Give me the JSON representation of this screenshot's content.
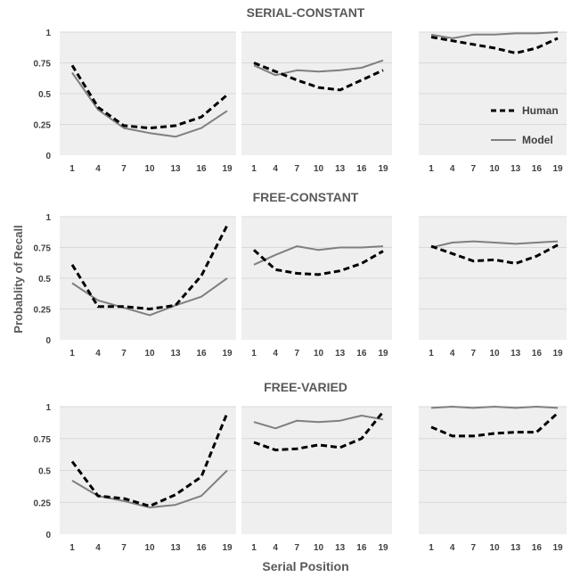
{
  "figure": {
    "ylabel": "Probablity of Recall",
    "xlabel": "Serial Position",
    "colors": {
      "panel_bg": "#efefef",
      "grid": "#d9d9d9",
      "human": "#000000",
      "model": "#7f7f7f",
      "text": "#404040"
    }
  },
  "legend": {
    "human": "Human",
    "model": "Model"
  },
  "chart_data": [
    {
      "type": "line",
      "row": 0,
      "col": 0,
      "title": "SERIAL-CONSTANT",
      "x": [
        1,
        4,
        7,
        10,
        13,
        16,
        19
      ],
      "x_tick_labels": [
        "1",
        "4",
        "7",
        "10",
        "13",
        "16",
        "19"
      ],
      "y_tick_labels": [
        "0",
        "0.25",
        "0.5",
        "0.75",
        "1"
      ],
      "ylim": [
        0,
        1
      ],
      "grid": true,
      "series": [
        {
          "name": "Human",
          "style": "dashed",
          "values": [
            0.73,
            0.39,
            0.24,
            0.22,
            0.24,
            0.31,
            0.49
          ]
        },
        {
          "name": "Model",
          "style": "solid",
          "values": [
            0.67,
            0.37,
            0.22,
            0.18,
            0.15,
            0.22,
            0.36
          ]
        }
      ]
    },
    {
      "type": "line",
      "row": 0,
      "col": 1,
      "x": [
        1,
        4,
        7,
        10,
        13,
        16,
        19
      ],
      "x_tick_labels": [
        "1",
        "4",
        "7",
        "10",
        "13",
        "16",
        "19"
      ],
      "ylim": [
        0,
        1
      ],
      "grid": true,
      "series": [
        {
          "name": "Human",
          "style": "dashed",
          "values": [
            0.75,
            0.68,
            0.61,
            0.55,
            0.53,
            0.61,
            0.69
          ]
        },
        {
          "name": "Model",
          "style": "solid",
          "values": [
            0.73,
            0.65,
            0.69,
            0.68,
            0.69,
            0.71,
            0.77
          ]
        }
      ]
    },
    {
      "type": "line",
      "row": 0,
      "col": 2,
      "x": [
        1,
        4,
        7,
        10,
        13,
        16,
        19
      ],
      "x_tick_labels": [
        "1",
        "4",
        "7",
        "10",
        "13",
        "16",
        "19"
      ],
      "ylim": [
        0,
        1
      ],
      "grid": true,
      "legend": "inside-right",
      "series": [
        {
          "name": "Human",
          "style": "dashed",
          "values": [
            0.96,
            0.93,
            0.9,
            0.87,
            0.83,
            0.87,
            0.95
          ]
        },
        {
          "name": "Model",
          "style": "solid",
          "values": [
            0.98,
            0.95,
            0.98,
            0.98,
            0.99,
            0.99,
            1.0
          ]
        }
      ]
    },
    {
      "type": "line",
      "row": 1,
      "col": 0,
      "title": "FREE-CONSTANT",
      "x": [
        1,
        4,
        7,
        10,
        13,
        16,
        19
      ],
      "x_tick_labels": [
        "1",
        "4",
        "7",
        "10",
        "13",
        "16",
        "19"
      ],
      "y_tick_labels": [
        "0",
        "0.25",
        "0.5",
        "0.75",
        "1"
      ],
      "ylim": [
        0,
        1
      ],
      "grid": true,
      "series": [
        {
          "name": "Human",
          "style": "dashed",
          "values": [
            0.61,
            0.27,
            0.27,
            0.25,
            0.28,
            0.52,
            0.93
          ]
        },
        {
          "name": "Model",
          "style": "solid",
          "values": [
            0.46,
            0.32,
            0.26,
            0.2,
            0.28,
            0.35,
            0.5
          ]
        }
      ]
    },
    {
      "type": "line",
      "row": 1,
      "col": 1,
      "x": [
        1,
        4,
        7,
        10,
        13,
        16,
        19
      ],
      "x_tick_labels": [
        "1",
        "4",
        "7",
        "10",
        "13",
        "16",
        "19"
      ],
      "ylim": [
        0,
        1
      ],
      "grid": true,
      "series": [
        {
          "name": "Human",
          "style": "dashed",
          "values": [
            0.73,
            0.57,
            0.54,
            0.53,
            0.56,
            0.62,
            0.72
          ]
        },
        {
          "name": "Model",
          "style": "solid",
          "values": [
            0.61,
            0.69,
            0.76,
            0.73,
            0.75,
            0.75,
            0.76
          ]
        }
      ]
    },
    {
      "type": "line",
      "row": 1,
      "col": 2,
      "x": [
        1,
        4,
        7,
        10,
        13,
        16,
        19
      ],
      "x_tick_labels": [
        "1",
        "4",
        "7",
        "10",
        "13",
        "16",
        "19"
      ],
      "ylim": [
        0,
        1
      ],
      "grid": true,
      "series": [
        {
          "name": "Human",
          "style": "dashed",
          "values": [
            0.76,
            0.7,
            0.64,
            0.65,
            0.62,
            0.68,
            0.77
          ]
        },
        {
          "name": "Model",
          "style": "solid",
          "values": [
            0.75,
            0.79,
            0.8,
            0.79,
            0.78,
            0.79,
            0.8
          ]
        }
      ]
    },
    {
      "type": "line",
      "row": 2,
      "col": 0,
      "title": "FREE-VARIED",
      "x": [
        1,
        4,
        7,
        10,
        13,
        16,
        19
      ],
      "x_tick_labels": [
        "1",
        "4",
        "7",
        "10",
        "13",
        "16",
        "19"
      ],
      "y_tick_labels": [
        "0",
        "0.25",
        "0.5",
        "0.75",
        "1"
      ],
      "ylim": [
        0,
        1
      ],
      "grid": true,
      "series": [
        {
          "name": "Human",
          "style": "dashed",
          "values": [
            0.57,
            0.3,
            0.28,
            0.22,
            0.31,
            0.45,
            0.95
          ]
        },
        {
          "name": "Model",
          "style": "solid",
          "values": [
            0.42,
            0.3,
            0.26,
            0.21,
            0.23,
            0.3,
            0.5
          ]
        }
      ]
    },
    {
      "type": "line",
      "row": 2,
      "col": 1,
      "x": [
        1,
        4,
        7,
        10,
        13,
        16,
        19
      ],
      "x_tick_labels": [
        "1",
        "4",
        "7",
        "10",
        "13",
        "16",
        "19"
      ],
      "ylim": [
        0,
        1
      ],
      "grid": true,
      "series": [
        {
          "name": "Human",
          "style": "dashed",
          "values": [
            0.72,
            0.66,
            0.67,
            0.7,
            0.68,
            0.75,
            0.96
          ]
        },
        {
          "name": "Model",
          "style": "solid",
          "values": [
            0.88,
            0.83,
            0.89,
            0.88,
            0.89,
            0.93,
            0.9
          ]
        }
      ]
    },
    {
      "type": "line",
      "row": 2,
      "col": 2,
      "x": [
        1,
        4,
        7,
        10,
        13,
        16,
        19
      ],
      "x_tick_labels": [
        "1",
        "4",
        "7",
        "10",
        "13",
        "16",
        "19"
      ],
      "ylim": [
        0,
        1
      ],
      "grid": true,
      "series": [
        {
          "name": "Human",
          "style": "dashed",
          "values": [
            0.84,
            0.77,
            0.77,
            0.79,
            0.8,
            0.8,
            0.95
          ]
        },
        {
          "name": "Model",
          "style": "solid",
          "values": [
            0.99,
            1.0,
            0.99,
            1.0,
            0.99,
            1.0,
            0.99
          ]
        }
      ]
    }
  ]
}
